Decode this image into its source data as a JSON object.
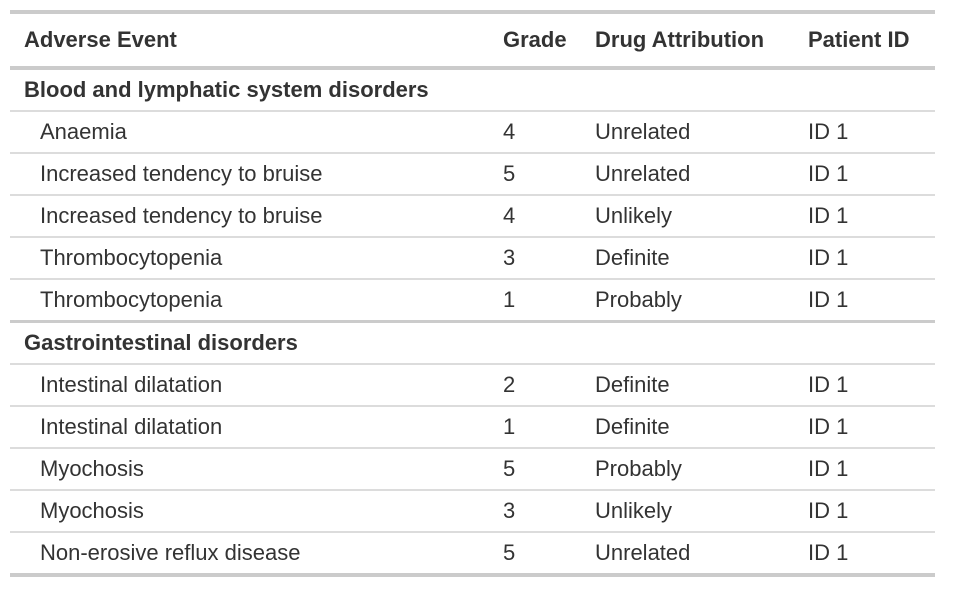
{
  "table": {
    "columns": [
      "Adverse Event",
      "Grade",
      "Drug Attribution",
      "Patient ID"
    ],
    "groups": [
      {
        "label": "Blood and lymphatic system disorders",
        "rows": [
          {
            "adverse_event": "Anaemia",
            "grade": "4",
            "drug_attribution": "Unrelated",
            "patient_id": "ID 1"
          },
          {
            "adverse_event": "Increased tendency to bruise",
            "grade": "5",
            "drug_attribution": "Unrelated",
            "patient_id": "ID 1"
          },
          {
            "adverse_event": "Increased tendency to bruise",
            "grade": "4",
            "drug_attribution": "Unlikely",
            "patient_id": "ID 1"
          },
          {
            "adverse_event": "Thrombocytopenia",
            "grade": "3",
            "drug_attribution": "Definite",
            "patient_id": "ID 1"
          },
          {
            "adverse_event": "Thrombocytopenia",
            "grade": "1",
            "drug_attribution": "Probably",
            "patient_id": "ID 1"
          }
        ]
      },
      {
        "label": "Gastrointestinal disorders",
        "rows": [
          {
            "adverse_event": "Intestinal dilatation",
            "grade": "2",
            "drug_attribution": "Definite",
            "patient_id": "ID 1"
          },
          {
            "adverse_event": "Intestinal dilatation",
            "grade": "1",
            "drug_attribution": "Definite",
            "patient_id": "ID 1"
          },
          {
            "adverse_event": "Myochosis",
            "grade": "5",
            "drug_attribution": "Probably",
            "patient_id": "ID 1"
          },
          {
            "adverse_event": "Myochosis",
            "grade": "3",
            "drug_attribution": "Unlikely",
            "patient_id": "ID 1"
          },
          {
            "adverse_event": "Non-erosive reflux disease",
            "grade": "5",
            "drug_attribution": "Unrelated",
            "patient_id": "ID 1"
          }
        ]
      }
    ],
    "colors": {
      "text": "#333333",
      "border_heavy": "#cbcbcb",
      "border_light": "#dcdcdc",
      "background": "#ffffff"
    }
  }
}
